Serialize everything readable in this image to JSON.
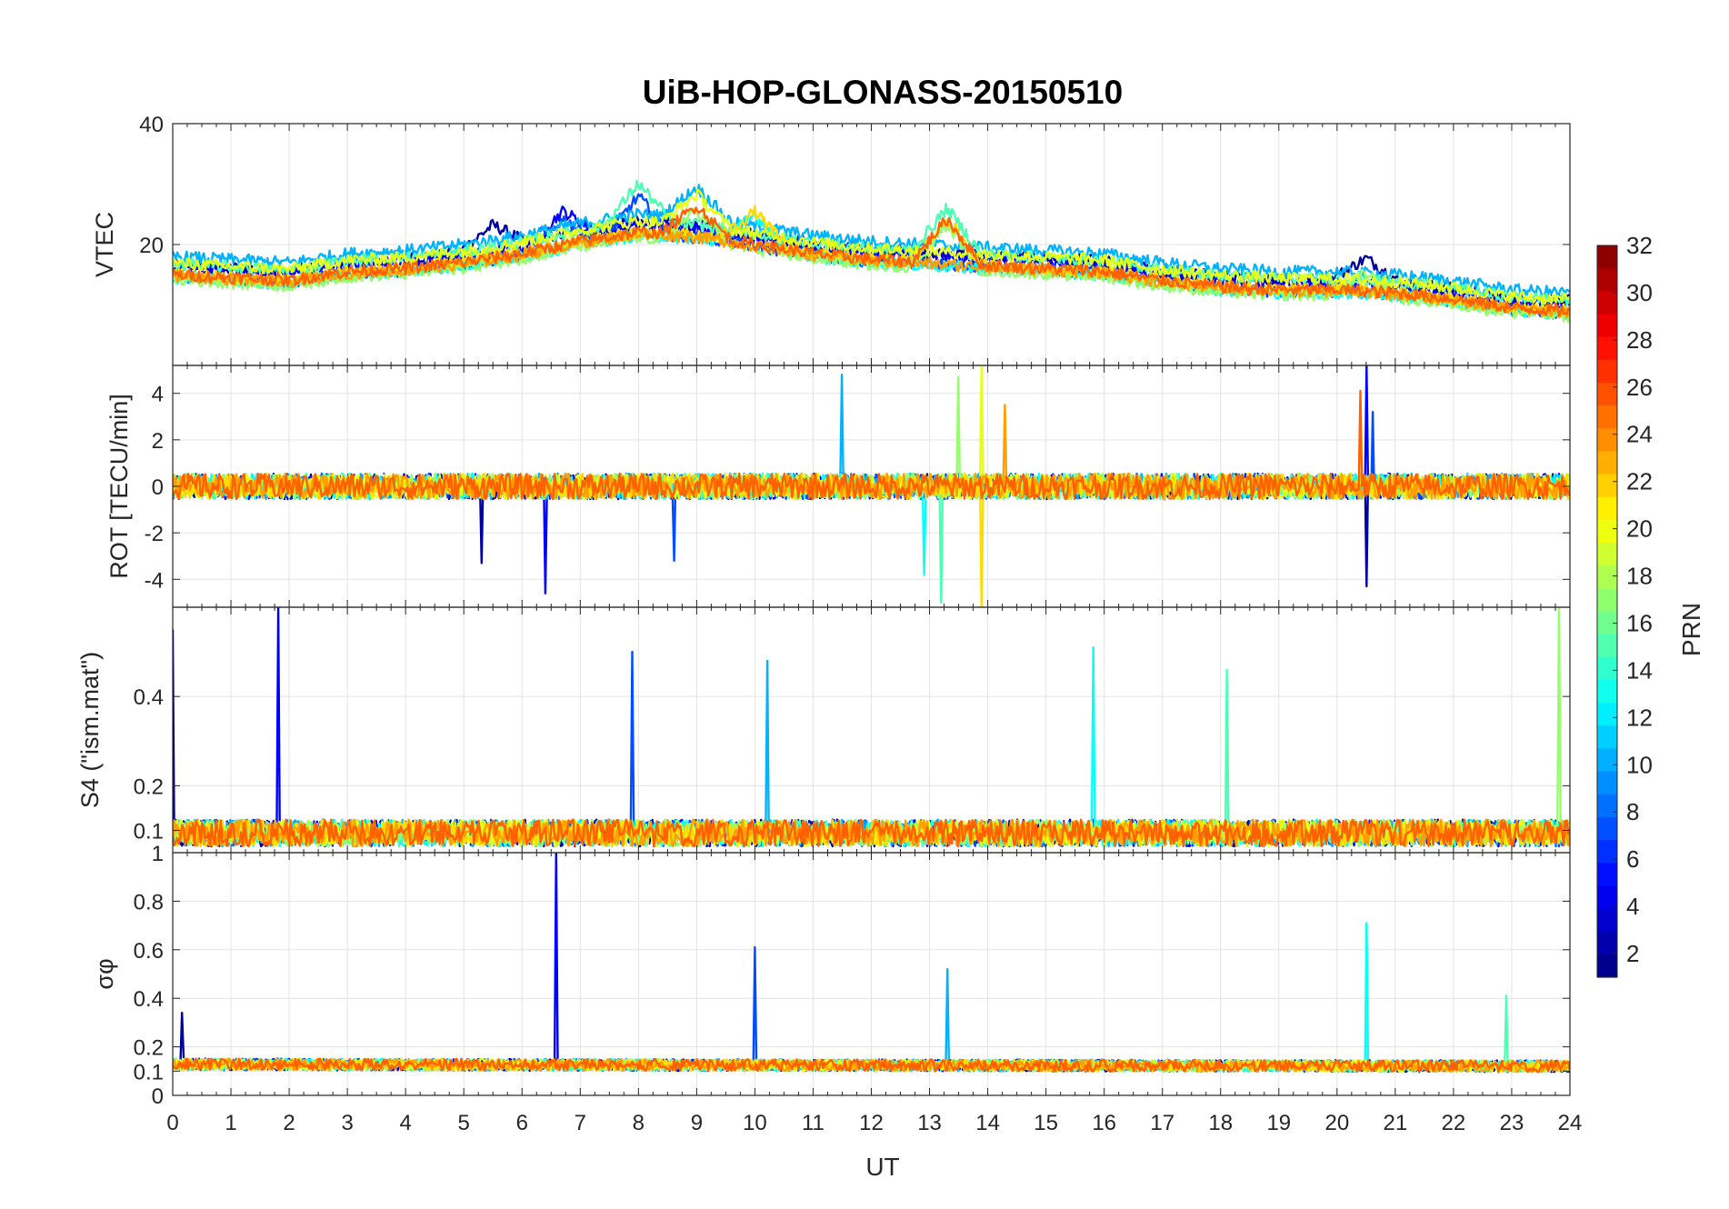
{
  "chart_data": {
    "type": "line",
    "title": "UiB-HOP-GLONASS-20150510",
    "xlabel": "UT",
    "xlim": [
      0,
      24
    ],
    "x_ticks": [
      "0",
      "1",
      "2",
      "3",
      "4",
      "5",
      "6",
      "7",
      "8",
      "9",
      "10",
      "11",
      "12",
      "13",
      "14",
      "15",
      "16",
      "17",
      "18",
      "19",
      "20",
      "21",
      "22",
      "23",
      "24"
    ],
    "grid": true,
    "colormap": "jet",
    "colorbar": {
      "label": "PRN",
      "range": [
        1,
        32
      ],
      "ticks": [
        "2",
        "4",
        "6",
        "8",
        "10",
        "12",
        "14",
        "16",
        "18",
        "20",
        "22",
        "24",
        "26",
        "28",
        "30",
        "32"
      ],
      "placement": "right"
    },
    "panels": [
      {
        "ylabel": "VTEC",
        "ylim": [
          0,
          40
        ],
        "y_ticks": [
          "20",
          "40"
        ],
        "baseline": [
          [
            0,
            16
          ],
          [
            2,
            15
          ],
          [
            3,
            16.5
          ],
          [
            4,
            17
          ],
          [
            5,
            18
          ],
          [
            6,
            19.5
          ],
          [
            7,
            21.5
          ],
          [
            8,
            23
          ],
          [
            9,
            22.5
          ],
          [
            10,
            21
          ],
          [
            11,
            19.5
          ],
          [
            12,
            18.5
          ],
          [
            13,
            18
          ],
          [
            14,
            17.5
          ],
          [
            15,
            17
          ],
          [
            16,
            16.5
          ],
          [
            17,
            15
          ],
          [
            18,
            14
          ],
          [
            19,
            13.5
          ],
          [
            20,
            13.5
          ],
          [
            21,
            13
          ],
          [
            22,
            12
          ],
          [
            23,
            10.5
          ],
          [
            24,
            10
          ]
        ],
        "highlights": [
          [
            5.5,
            23
          ],
          [
            6.7,
            26
          ],
          [
            8,
            30
          ],
          [
            9,
            28
          ],
          [
            10,
            27
          ],
          [
            13.3,
            26
          ],
          [
            20.5,
            17.5
          ]
        ],
        "spread": 2.2,
        "noise": 1.0
      },
      {
        "ylabel": "ROT [TECU/min]",
        "ylim": [
          -5.2,
          5.2
        ],
        "y_ticks": [
          "-4",
          "-2",
          "0",
          "2",
          "4"
        ],
        "baseline": [
          [
            0,
            0
          ],
          [
            24,
            0
          ]
        ],
        "spikes": [
          [
            5.3,
            -3.3
          ],
          [
            6.4,
            -4.6
          ],
          [
            8.6,
            -3.2
          ],
          [
            11.5,
            4.8
          ],
          [
            12.9,
            -3.8
          ],
          [
            13.2,
            -5
          ],
          [
            13.5,
            4.7
          ],
          [
            13.9,
            5.2
          ],
          [
            13.9,
            -5.2
          ],
          [
            14.3,
            3.5
          ],
          [
            20.4,
            4.1
          ],
          [
            20.5,
            -4.3
          ],
          [
            20.5,
            5.2
          ],
          [
            20.6,
            3.2
          ]
        ],
        "noise": 0.55
      },
      {
        "ylabel": "S4 (\"ism.mat\")",
        "ylim": [
          0.05,
          0.6
        ],
        "y_ticks": [
          "0.1",
          "0.2",
          "0.4"
        ],
        "y_tick_values": [
          0.1,
          0.2,
          0.4
        ],
        "baseline": [
          [
            0,
            0.08
          ],
          [
            24,
            0.08
          ]
        ],
        "spikes": [
          [
            0,
            0.55
          ],
          [
            1.8,
            0.6
          ],
          [
            7.9,
            0.5
          ],
          [
            10.2,
            0.48
          ],
          [
            15.8,
            0.51
          ],
          [
            18.1,
            0.46
          ],
          [
            23.8,
            0.6
          ]
        ],
        "noise": 0.05
      },
      {
        "ylabel": "σφ",
        "ylim": [
          0,
          1
        ],
        "y_ticks": [
          "0",
          "0.1",
          "0.2",
          "0.4",
          "0.6",
          "0.8",
          "1"
        ],
        "y_tick_values": [
          0,
          0.1,
          0.2,
          0.4,
          0.6,
          0.8,
          1
        ],
        "baseline": [
          [
            0,
            0.13
          ],
          [
            24,
            0.12
          ]
        ],
        "spikes": [
          [
            0.15,
            0.34
          ],
          [
            6.6,
            1.0
          ],
          [
            10,
            0.61
          ],
          [
            13.3,
            0.52
          ],
          [
            20.5,
            0.71
          ],
          [
            22.9,
            0.41
          ]
        ],
        "noise": 0.04
      }
    ]
  }
}
